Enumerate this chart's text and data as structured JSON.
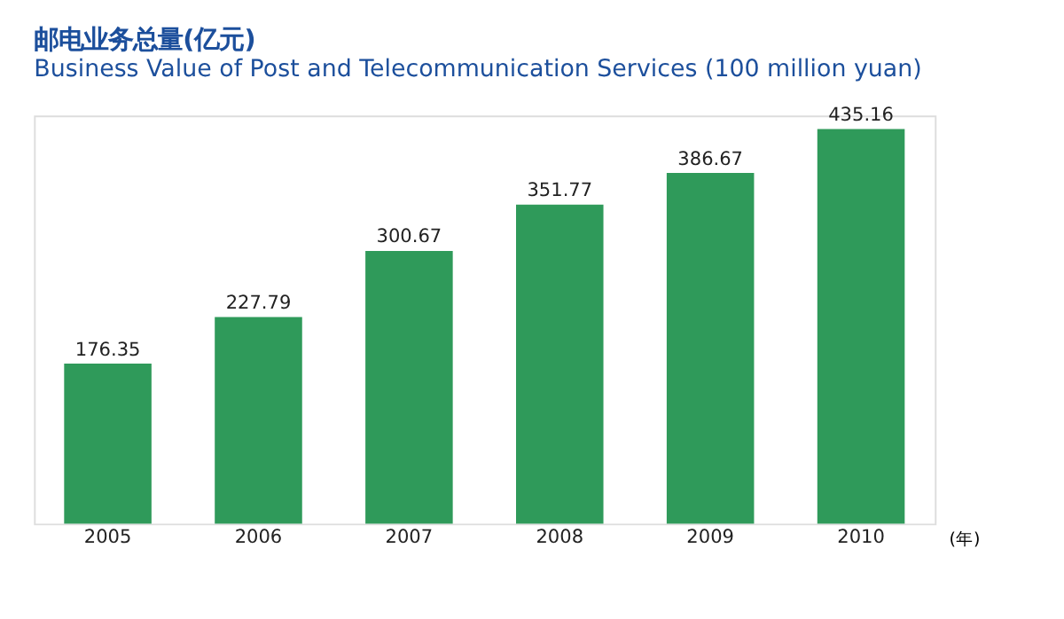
{
  "chart_data": {
    "type": "bar",
    "title": "邮电业务总量(亿元)",
    "subtitle": "Business Value of Post and Telecommunication Services (100 million yuan)",
    "xlabel": "(年)",
    "categories": [
      "2005",
      "2006",
      "2007",
      "2008",
      "2009",
      "2010"
    ],
    "values": [
      176.35,
      227.79,
      300.67,
      351.77,
      386.67,
      435.16
    ],
    "color": "#2f9a5a",
    "data_labels": true
  }
}
